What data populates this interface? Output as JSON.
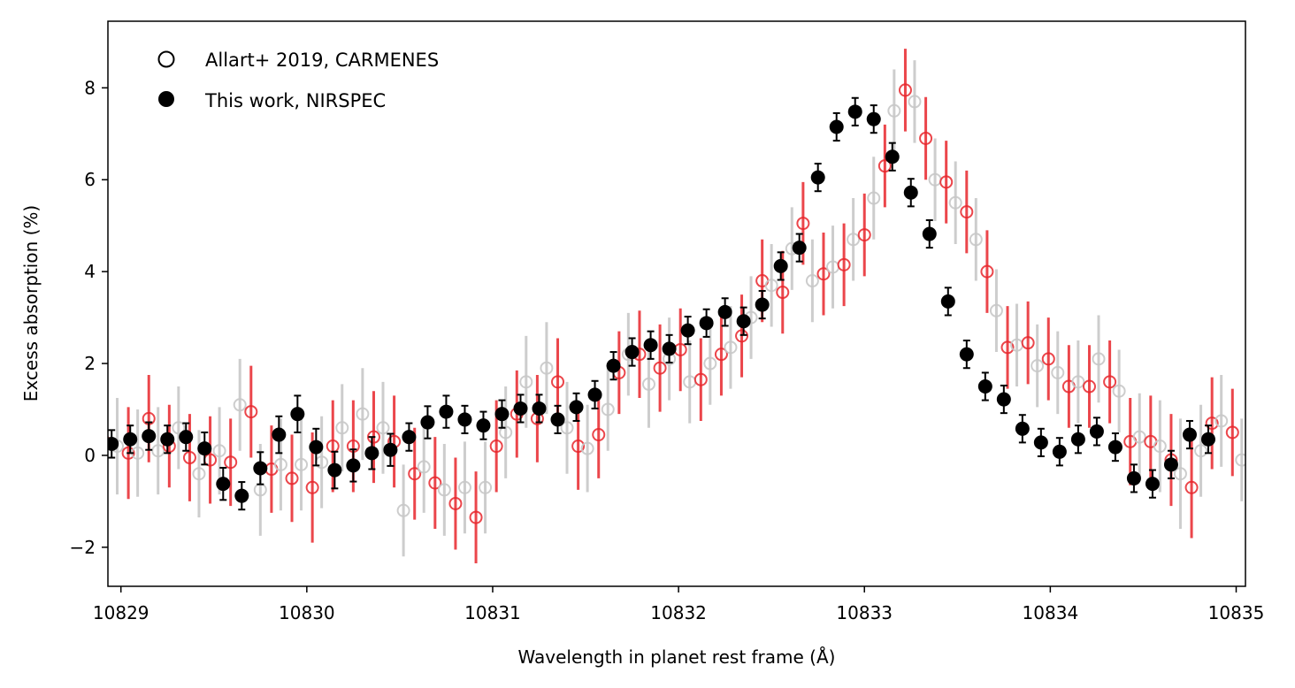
{
  "chart_data": {
    "type": "scatter",
    "xlabel": "Wavelength in planet rest frame (Å)",
    "ylabel": "Excess absorption (%)",
    "xlim": [
      10828.93,
      10835.05
    ],
    "ylim": [
      -2.85,
      9.45
    ],
    "x_ticks": [
      10829,
      10830,
      10831,
      10832,
      10833,
      10834,
      10835
    ],
    "y_ticks": [
      -2,
      0,
      2,
      4,
      6,
      8
    ],
    "y_tick_labels": [
      "−2",
      "0",
      "2",
      "4",
      "6",
      "8"
    ],
    "grid": false,
    "legend_placement": "top-left",
    "colors": {
      "carmenes_red": "#e8262b",
      "carmenes_grey": "#c8c8c8",
      "nirspec": "#000000"
    },
    "series": [
      {
        "name": "Allart+ 2019, CARMENES",
        "marker": "open-circle",
        "points": [
          {
            "x": 10828.91,
            "y": 0.3,
            "err": 0.95
          },
          {
            "x": 10828.98,
            "y": 0.2,
            "err": 1.05
          },
          {
            "x": 10829.04,
            "y": 0.05,
            "err": 1.0
          },
          {
            "x": 10829.09,
            "y": 0.05,
            "err": 0.95
          },
          {
            "x": 10829.15,
            "y": 0.8,
            "err": 0.95
          },
          {
            "x": 10829.2,
            "y": 0.1,
            "err": 0.95
          },
          {
            "x": 10829.26,
            "y": 0.2,
            "err": 0.9
          },
          {
            "x": 10829.31,
            "y": 0.6,
            "err": 0.9
          },
          {
            "x": 10829.37,
            "y": -0.05,
            "err": 0.95
          },
          {
            "x": 10829.42,
            "y": -0.4,
            "err": 0.95
          },
          {
            "x": 10829.48,
            "y": -0.1,
            "err": 0.95
          },
          {
            "x": 10829.53,
            "y": 0.1,
            "err": 0.95
          },
          {
            "x": 10829.59,
            "y": -0.15,
            "err": 0.95
          },
          {
            "x": 10829.64,
            "y": 1.1,
            "err": 1.0
          },
          {
            "x": 10829.7,
            "y": 0.95,
            "err": 1.0
          },
          {
            "x": 10829.75,
            "y": -0.75,
            "err": 1.0
          },
          {
            "x": 10829.81,
            "y": -0.3,
            "err": 0.95
          },
          {
            "x": 10829.86,
            "y": -0.2,
            "err": 1.0
          },
          {
            "x": 10829.92,
            "y": -0.5,
            "err": 0.95
          },
          {
            "x": 10829.97,
            "y": -0.2,
            "err": 1.0
          },
          {
            "x": 10830.03,
            "y": -0.7,
            "err": 1.2
          },
          {
            "x": 10830.08,
            "y": -0.15,
            "err": 1.0
          },
          {
            "x": 10830.14,
            "y": 0.2,
            "err": 1.0
          },
          {
            "x": 10830.19,
            "y": 0.6,
            "err": 0.95
          },
          {
            "x": 10830.25,
            "y": 0.2,
            "err": 1.0
          },
          {
            "x": 10830.3,
            "y": 0.9,
            "err": 1.0
          },
          {
            "x": 10830.36,
            "y": 0.4,
            "err": 1.0
          },
          {
            "x": 10830.41,
            "y": 0.6,
            "err": 1.0
          },
          {
            "x": 10830.47,
            "y": 0.3,
            "err": 1.0
          },
          {
            "x": 10830.52,
            "y": -1.2,
            "err": 1.0
          },
          {
            "x": 10830.58,
            "y": -0.4,
            "err": 1.0
          },
          {
            "x": 10830.63,
            "y": -0.25,
            "err": 1.0
          },
          {
            "x": 10830.69,
            "y": -0.6,
            "err": 1.0
          },
          {
            "x": 10830.74,
            "y": -0.75,
            "err": 1.0
          },
          {
            "x": 10830.8,
            "y": -1.05,
            "err": 1.0
          },
          {
            "x": 10830.85,
            "y": -0.7,
            "err": 1.0
          },
          {
            "x": 10830.91,
            "y": -1.35,
            "err": 1.0
          },
          {
            "x": 10830.96,
            "y": -0.7,
            "err": 1.0
          },
          {
            "x": 10831.02,
            "y": 0.2,
            "err": 1.0
          },
          {
            "x": 10831.07,
            "y": 0.5,
            "err": 1.0
          },
          {
            "x": 10831.13,
            "y": 0.9,
            "err": 0.95
          },
          {
            "x": 10831.18,
            "y": 1.6,
            "err": 1.0
          },
          {
            "x": 10831.24,
            "y": 0.8,
            "err": 0.95
          },
          {
            "x": 10831.29,
            "y": 1.9,
            "err": 1.0
          },
          {
            "x": 10831.35,
            "y": 1.6,
            "err": 0.95
          },
          {
            "x": 10831.4,
            "y": 0.6,
            "err": 1.0
          },
          {
            "x": 10831.46,
            "y": 0.2,
            "err": 0.95
          },
          {
            "x": 10831.51,
            "y": 0.15,
            "err": 0.95
          },
          {
            "x": 10831.57,
            "y": 0.45,
            "err": 0.95
          },
          {
            "x": 10831.62,
            "y": 1.0,
            "err": 0.9
          },
          {
            "x": 10831.68,
            "y": 1.8,
            "err": 0.9
          },
          {
            "x": 10831.73,
            "y": 2.2,
            "err": 0.9
          },
          {
            "x": 10831.79,
            "y": 2.2,
            "err": 0.95
          },
          {
            "x": 10831.84,
            "y": 1.55,
            "err": 0.95
          },
          {
            "x": 10831.9,
            "y": 1.9,
            "err": 0.95
          },
          {
            "x": 10831.95,
            "y": 2.1,
            "err": 0.9
          },
          {
            "x": 10832.01,
            "y": 2.3,
            "err": 0.9
          },
          {
            "x": 10832.06,
            "y": 1.6,
            "err": 0.9
          },
          {
            "x": 10832.12,
            "y": 1.65,
            "err": 0.9
          },
          {
            "x": 10832.17,
            "y": 2.0,
            "err": 0.9
          },
          {
            "x": 10832.23,
            "y": 2.2,
            "err": 0.9
          },
          {
            "x": 10832.28,
            "y": 2.35,
            "err": 0.9
          },
          {
            "x": 10832.34,
            "y": 2.6,
            "err": 0.9
          },
          {
            "x": 10832.39,
            "y": 3.0,
            "err": 0.9
          },
          {
            "x": 10832.45,
            "y": 3.8,
            "err": 0.9
          },
          {
            "x": 10832.5,
            "y": 3.7,
            "err": 0.9
          },
          {
            "x": 10832.56,
            "y": 3.55,
            "err": 0.9
          },
          {
            "x": 10832.61,
            "y": 4.5,
            "err": 0.9
          },
          {
            "x": 10832.67,
            "y": 5.05,
            "err": 0.9
          },
          {
            "x": 10832.72,
            "y": 3.8,
            "err": 0.9
          },
          {
            "x": 10832.78,
            "y": 3.95,
            "err": 0.9
          },
          {
            "x": 10832.83,
            "y": 4.1,
            "err": 0.9
          },
          {
            "x": 10832.89,
            "y": 4.15,
            "err": 0.9
          },
          {
            "x": 10832.94,
            "y": 4.7,
            "err": 0.9
          },
          {
            "x": 10833.0,
            "y": 4.8,
            "err": 0.9
          },
          {
            "x": 10833.05,
            "y": 5.6,
            "err": 0.9
          },
          {
            "x": 10833.11,
            "y": 6.3,
            "err": 0.9
          },
          {
            "x": 10833.16,
            "y": 7.5,
            "err": 0.9
          },
          {
            "x": 10833.22,
            "y": 7.95,
            "err": 0.9
          },
          {
            "x": 10833.27,
            "y": 7.7,
            "err": 0.9
          },
          {
            "x": 10833.33,
            "y": 6.9,
            "err": 0.9
          },
          {
            "x": 10833.38,
            "y": 6.0,
            "err": 0.9
          },
          {
            "x": 10833.44,
            "y": 5.95,
            "err": 0.9
          },
          {
            "x": 10833.49,
            "y": 5.5,
            "err": 0.9
          },
          {
            "x": 10833.55,
            "y": 5.3,
            "err": 0.9
          },
          {
            "x": 10833.6,
            "y": 4.7,
            "err": 0.9
          },
          {
            "x": 10833.66,
            "y": 4.0,
            "err": 0.9
          },
          {
            "x": 10833.71,
            "y": 3.15,
            "err": 0.9
          },
          {
            "x": 10833.77,
            "y": 2.35,
            "err": 0.9
          },
          {
            "x": 10833.82,
            "y": 2.4,
            "err": 0.9
          },
          {
            "x": 10833.88,
            "y": 2.45,
            "err": 0.9
          },
          {
            "x": 10833.93,
            "y": 1.95,
            "err": 0.9
          },
          {
            "x": 10833.99,
            "y": 2.1,
            "err": 0.9
          },
          {
            "x": 10834.04,
            "y": 1.8,
            "err": 0.9
          },
          {
            "x": 10834.1,
            "y": 1.5,
            "err": 0.9
          },
          {
            "x": 10834.15,
            "y": 1.6,
            "err": 0.9
          },
          {
            "x": 10834.21,
            "y": 1.5,
            "err": 0.9
          },
          {
            "x": 10834.26,
            "y": 2.1,
            "err": 0.95
          },
          {
            "x": 10834.32,
            "y": 1.6,
            "err": 0.9
          },
          {
            "x": 10834.37,
            "y": 1.4,
            "err": 0.9
          },
          {
            "x": 10834.43,
            "y": 0.3,
            "err": 0.95
          },
          {
            "x": 10834.48,
            "y": 0.4,
            "err": 0.95
          },
          {
            "x": 10834.54,
            "y": 0.3,
            "err": 1.0
          },
          {
            "x": 10834.59,
            "y": 0.2,
            "err": 1.0
          },
          {
            "x": 10834.65,
            "y": -0.1,
            "err": 1.0
          },
          {
            "x": 10834.7,
            "y": -0.4,
            "err": 1.2
          },
          {
            "x": 10834.76,
            "y": -0.7,
            "err": 1.1
          },
          {
            "x": 10834.81,
            "y": 0.1,
            "err": 1.0
          },
          {
            "x": 10834.87,
            "y": 0.7,
            "err": 1.0
          },
          {
            "x": 10834.92,
            "y": 0.75,
            "err": 1.0
          },
          {
            "x": 10834.98,
            "y": 0.5,
            "err": 0.95
          },
          {
            "x": 10835.03,
            "y": -0.1,
            "err": 0.9
          }
        ]
      },
      {
        "name": "This work, NIRSPEC",
        "marker": "filled-circle",
        "points": [
          {
            "x": 10828.95,
            "y": 0.25,
            "err": 0.3
          },
          {
            "x": 10829.05,
            "y": 0.35,
            "err": 0.3
          },
          {
            "x": 10829.15,
            "y": 0.42,
            "err": 0.3
          },
          {
            "x": 10829.25,
            "y": 0.35,
            "err": 0.3
          },
          {
            "x": 10829.35,
            "y": 0.4,
            "err": 0.3
          },
          {
            "x": 10829.45,
            "y": 0.15,
            "err": 0.35
          },
          {
            "x": 10829.55,
            "y": -0.62,
            "err": 0.35
          },
          {
            "x": 10829.65,
            "y": -0.88,
            "err": 0.3
          },
          {
            "x": 10829.75,
            "y": -0.28,
            "err": 0.35
          },
          {
            "x": 10829.85,
            "y": 0.45,
            "err": 0.4
          },
          {
            "x": 10829.95,
            "y": 0.9,
            "err": 0.4
          },
          {
            "x": 10830.05,
            "y": 0.18,
            "err": 0.4
          },
          {
            "x": 10830.15,
            "y": -0.32,
            "err": 0.4
          },
          {
            "x": 10830.25,
            "y": -0.22,
            "err": 0.35
          },
          {
            "x": 10830.35,
            "y": 0.05,
            "err": 0.35
          },
          {
            "x": 10830.45,
            "y": 0.12,
            "err": 0.35
          },
          {
            "x": 10830.55,
            "y": 0.4,
            "err": 0.3
          },
          {
            "x": 10830.65,
            "y": 0.72,
            "err": 0.35
          },
          {
            "x": 10830.75,
            "y": 0.95,
            "err": 0.35
          },
          {
            "x": 10830.85,
            "y": 0.78,
            "err": 0.3
          },
          {
            "x": 10830.95,
            "y": 0.65,
            "err": 0.3
          },
          {
            "x": 10831.05,
            "y": 0.9,
            "err": 0.3
          },
          {
            "x": 10831.15,
            "y": 1.02,
            "err": 0.3
          },
          {
            "x": 10831.25,
            "y": 1.02,
            "err": 0.3
          },
          {
            "x": 10831.35,
            "y": 0.78,
            "err": 0.3
          },
          {
            "x": 10831.45,
            "y": 1.05,
            "err": 0.3
          },
          {
            "x": 10831.55,
            "y": 1.32,
            "err": 0.3
          },
          {
            "x": 10831.65,
            "y": 1.95,
            "err": 0.3
          },
          {
            "x": 10831.75,
            "y": 2.25,
            "err": 0.3
          },
          {
            "x": 10831.85,
            "y": 2.4,
            "err": 0.3
          },
          {
            "x": 10831.95,
            "y": 2.32,
            "err": 0.3
          },
          {
            "x": 10832.05,
            "y": 2.72,
            "err": 0.3
          },
          {
            "x": 10832.15,
            "y": 2.88,
            "err": 0.3
          },
          {
            "x": 10832.25,
            "y": 3.12,
            "err": 0.3
          },
          {
            "x": 10832.35,
            "y": 2.92,
            "err": 0.3
          },
          {
            "x": 10832.45,
            "y": 3.28,
            "err": 0.3
          },
          {
            "x": 10832.55,
            "y": 4.12,
            "err": 0.3
          },
          {
            "x": 10832.65,
            "y": 4.52,
            "err": 0.3
          },
          {
            "x": 10832.75,
            "y": 6.05,
            "err": 0.3
          },
          {
            "x": 10832.85,
            "y": 7.15,
            "err": 0.3
          },
          {
            "x": 10832.95,
            "y": 7.48,
            "err": 0.3
          },
          {
            "x": 10833.05,
            "y": 7.32,
            "err": 0.3
          },
          {
            "x": 10833.15,
            "y": 6.5,
            "err": 0.3
          },
          {
            "x": 10833.25,
            "y": 5.72,
            "err": 0.3
          },
          {
            "x": 10833.35,
            "y": 4.82,
            "err": 0.3
          },
          {
            "x": 10833.45,
            "y": 3.35,
            "err": 0.3
          },
          {
            "x": 10833.55,
            "y": 2.2,
            "err": 0.3
          },
          {
            "x": 10833.65,
            "y": 1.5,
            "err": 0.3
          },
          {
            "x": 10833.75,
            "y": 1.22,
            "err": 0.3
          },
          {
            "x": 10833.85,
            "y": 0.58,
            "err": 0.3
          },
          {
            "x": 10833.95,
            "y": 0.28,
            "err": 0.3
          },
          {
            "x": 10834.05,
            "y": 0.08,
            "err": 0.3
          },
          {
            "x": 10834.15,
            "y": 0.35,
            "err": 0.3
          },
          {
            "x": 10834.25,
            "y": 0.52,
            "err": 0.3
          },
          {
            "x": 10834.35,
            "y": 0.18,
            "err": 0.3
          },
          {
            "x": 10834.45,
            "y": -0.5,
            "err": 0.3
          },
          {
            "x": 10834.55,
            "y": -0.62,
            "err": 0.3
          },
          {
            "x": 10834.65,
            "y": -0.2,
            "err": 0.3
          },
          {
            "x": 10834.75,
            "y": 0.45,
            "err": 0.3
          },
          {
            "x": 10834.85,
            "y": 0.35,
            "err": 0.3
          }
        ]
      }
    ]
  }
}
